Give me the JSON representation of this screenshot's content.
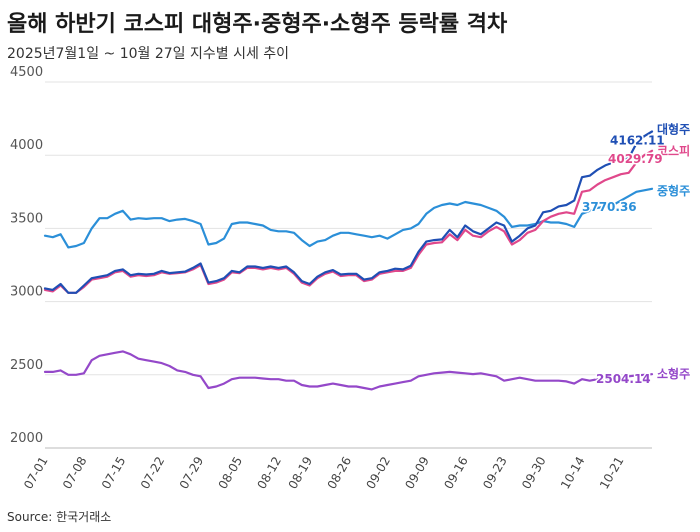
{
  "header": {
    "title": "올해 하반기 코스피 대형주·중형주·소형주 등락률 격차",
    "subtitle": "2025년7월1일 ~ 10월 27일 지수별 시세 추이"
  },
  "footer": {
    "source": "Source: 한국거래소"
  },
  "chart_data": {
    "type": "line",
    "title": "올해 하반기 코스피 대형주·중형주·소형주 등락률 격차",
    "subtitle": "2025년7월1일 ~ 10월 27일 지수별 시세 추이",
    "xlabel": "",
    "ylabel": "",
    "ylim": [
      2000,
      4500
    ],
    "yticks": [
      2000,
      2500,
      3000,
      3500,
      4000,
      4500
    ],
    "xticks": [
      "07-01",
      "07-08",
      "07-15",
      "07-22",
      "07-29",
      "08-05",
      "08-12",
      "08-19",
      "08-26",
      "09-02",
      "09-09",
      "09-16",
      "09-23",
      "09-30",
      "10-07",
      "10-14",
      "10-21"
    ],
    "grid": "horizontal",
    "x": [
      "07-01",
      "07-02",
      "07-03",
      "07-04",
      "07-07",
      "07-08",
      "07-09",
      "07-10",
      "07-11",
      "07-14",
      "07-15",
      "07-16",
      "07-17",
      "07-18",
      "07-21",
      "07-22",
      "07-23",
      "07-24",
      "07-25",
      "07-28",
      "07-29",
      "07-30",
      "07-31",
      "08-01",
      "08-04",
      "08-05",
      "08-06",
      "08-07",
      "08-08",
      "08-11",
      "08-12",
      "08-13",
      "08-14",
      "08-18",
      "08-19",
      "08-20",
      "08-21",
      "08-22",
      "08-25",
      "08-26",
      "08-27",
      "08-28",
      "08-29",
      "09-01",
      "09-02",
      "09-03",
      "09-04",
      "09-05",
      "09-08",
      "09-09",
      "09-10",
      "09-11",
      "09-12",
      "09-15",
      "09-16",
      "09-17",
      "09-18",
      "09-19",
      "09-22",
      "09-23",
      "09-24",
      "09-25",
      "09-26",
      "09-29",
      "09-30",
      "10-01",
      "10-02",
      "10-10",
      "10-13",
      "10-14",
      "10-15",
      "10-16",
      "10-17",
      "10-20",
      "10-21",
      "10-22",
      "10-23",
      "10-24",
      "10-27"
    ],
    "series": [
      {
        "name": "대형주",
        "color": "#1f4fb4",
        "end_label": "4162.11",
        "values": [
          3090,
          3080,
          3120,
          3060,
          3060,
          3110,
          3160,
          3170,
          3180,
          3210,
          3220,
          3180,
          3190,
          3185,
          3190,
          3210,
          3195,
          3200,
          3205,
          3230,
          3260,
          3130,
          3140,
          3160,
          3210,
          3200,
          3240,
          3240,
          3230,
          3240,
          3230,
          3240,
          3200,
          3140,
          3120,
          3170,
          3200,
          3215,
          3185,
          3190,
          3190,
          3150,
          3160,
          3200,
          3210,
          3225,
          3220,
          3245,
          3340,
          3410,
          3420,
          3425,
          3490,
          3440,
          3520,
          3480,
          3460,
          3500,
          3540,
          3520,
          3410,
          3450,
          3500,
          3520,
          3610,
          3620,
          3650,
          3660,
          3690,
          3850,
          3860,
          3900,
          3930,
          3950,
          3970,
          3980,
          4080,
          4130,
          4162.11
        ]
      },
      {
        "name": "코스피",
        "color": "#e0488b",
        "end_label": "4029.79",
        "values": [
          3080,
          3070,
          3110,
          3060,
          3060,
          3100,
          3150,
          3160,
          3170,
          3200,
          3210,
          3170,
          3180,
          3175,
          3180,
          3200,
          3190,
          3195,
          3200,
          3220,
          3250,
          3120,
          3130,
          3150,
          3200,
          3195,
          3230,
          3230,
          3220,
          3230,
          3220,
          3230,
          3190,
          3130,
          3110,
          3160,
          3190,
          3205,
          3175,
          3180,
          3180,
          3140,
          3150,
          3190,
          3200,
          3210,
          3210,
          3230,
          3320,
          3390,
          3400,
          3405,
          3460,
          3420,
          3490,
          3450,
          3440,
          3480,
          3510,
          3480,
          3390,
          3420,
          3470,
          3490,
          3550,
          3580,
          3600,
          3610,
          3600,
          3750,
          3760,
          3800,
          3830,
          3850,
          3870,
          3880,
          3950,
          4000,
          4029.79
        ]
      },
      {
        "name": "중형주",
        "color": "#2b8fd8",
        "end_label": "3770.36",
        "values": [
          3450,
          3440,
          3460,
          3370,
          3380,
          3400,
          3500,
          3570,
          3570,
          3600,
          3620,
          3560,
          3570,
          3565,
          3570,
          3570,
          3550,
          3560,
          3565,
          3550,
          3530,
          3390,
          3400,
          3430,
          3530,
          3540,
          3540,
          3530,
          3520,
          3490,
          3480,
          3480,
          3470,
          3420,
          3380,
          3410,
          3420,
          3450,
          3470,
          3470,
          3460,
          3450,
          3440,
          3450,
          3430,
          3460,
          3490,
          3500,
          3530,
          3600,
          3640,
          3660,
          3670,
          3660,
          3680,
          3670,
          3660,
          3640,
          3620,
          3580,
          3510,
          3520,
          3520,
          3530,
          3550,
          3540,
          3540,
          3530,
          3510,
          3600,
          3620,
          3640,
          3650,
          3660,
          3690,
          3720,
          3750,
          3760,
          3770.36
        ]
      },
      {
        "name": "소형주",
        "color": "#9448c9",
        "end_label": "2504.14",
        "values": [
          2520,
          2520,
          2530,
          2500,
          2500,
          2510,
          2600,
          2630,
          2640,
          2650,
          2660,
          2640,
          2610,
          2600,
          2590,
          2580,
          2560,
          2530,
          2520,
          2500,
          2490,
          2410,
          2420,
          2440,
          2470,
          2480,
          2480,
          2480,
          2475,
          2470,
          2470,
          2460,
          2460,
          2430,
          2420,
          2420,
          2430,
          2440,
          2430,
          2420,
          2420,
          2410,
          2400,
          2420,
          2430,
          2440,
          2450,
          2460,
          2490,
          2500,
          2510,
          2515,
          2520,
          2515,
          2510,
          2505,
          2510,
          2500,
          2490,
          2460,
          2470,
          2480,
          2470,
          2460,
          2460,
          2460,
          2460,
          2455,
          2440,
          2470,
          2460,
          2470,
          2465,
          2470,
          2480,
          2490,
          2495,
          2500,
          2504.14
        ]
      }
    ]
  }
}
